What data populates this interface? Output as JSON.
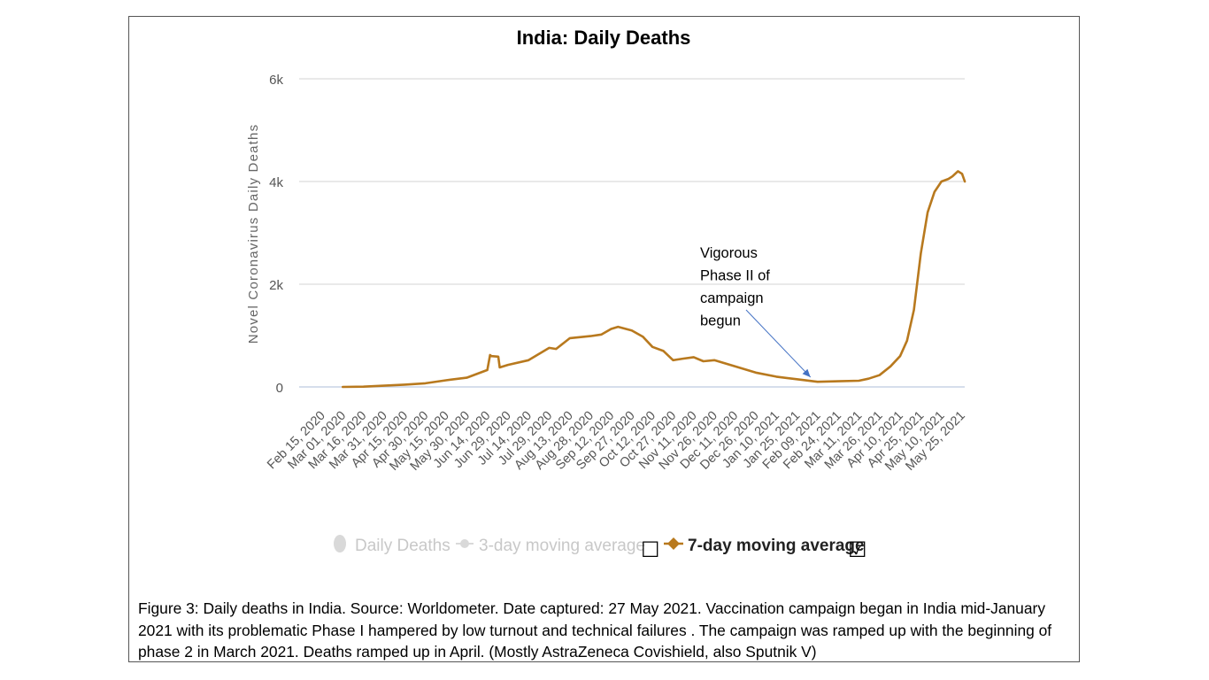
{
  "chart_data": {
    "type": "line",
    "title": "India: Daily Deaths",
    "ylabel": "Novel Coronavirus Daily Deaths",
    "xlabel": "",
    "ylim": [
      0,
      6000
    ],
    "yticks": [
      {
        "value": 0,
        "label": "0"
      },
      {
        "value": 2000,
        "label": "2k"
      },
      {
        "value": 4000,
        "label": "4k"
      },
      {
        "value": 6000,
        "label": "6k"
      }
    ],
    "x_tick_labels": [
      "Feb 15, 2020",
      "Mar 01, 2020",
      "Mar 16, 2020",
      "Mar 31, 2020",
      "Apr 15, 2020",
      "Apr 30, 2020",
      "May 15, 2020",
      "May 30, 2020",
      "Jun 14, 2020",
      "Jun 29, 2020",
      "Jul 14, 2020",
      "Jul 29, 2020",
      "Aug 13, 2020",
      "Aug 28, 2020",
      "Sep 12, 2020",
      "Sep 27, 2020",
      "Oct 12, 2020",
      "Oct 27, 2020",
      "Nov 11, 2020",
      "Nov 26, 2020",
      "Dec 11, 2020",
      "Dec 26, 2020",
      "Jan 10, 2021",
      "Jan 25, 2021",
      "Feb 09, 2021",
      "Feb 24, 2021",
      "Mar 11, 2021",
      "Mar 26, 2021",
      "Apr 10, 2021",
      "Apr 25, 2021",
      "May 10, 2021",
      "May 25, 2021"
    ],
    "grid": true,
    "legend_position": "bottom",
    "legend": [
      {
        "label": "Daily Deaths",
        "active": false,
        "checkbox": ""
      },
      {
        "label": "3-day moving average",
        "active": false,
        "checkbox": "☐"
      },
      {
        "label": "7-day moving average",
        "active": true,
        "checkbox": "☑"
      }
    ],
    "series": [
      {
        "name": "7-day moving average",
        "color": "#b8791e",
        "x": [
          "Mar 01, 2020",
          "Mar 16, 2020",
          "Mar 31, 2020",
          "Apr 15, 2020",
          "Apr 30, 2020",
          "May 15, 2020",
          "May 30, 2020",
          "Jun 14, 2020",
          "Jun 16, 2020",
          "Jun 17, 2020",
          "Jun 22, 2020",
          "Jun 23, 2020",
          "Jun 29, 2020",
          "Jul 14, 2020",
          "Jul 29, 2020",
          "Aug 03, 2020",
          "Aug 13, 2020",
          "Aug 28, 2020",
          "Sep 05, 2020",
          "Sep 12, 2020",
          "Sep 17, 2020",
          "Sep 27, 2020",
          "Oct 05, 2020",
          "Oct 12, 2020",
          "Oct 20, 2020",
          "Oct 27, 2020",
          "Nov 03, 2020",
          "Nov 11, 2020",
          "Nov 18, 2020",
          "Nov 26, 2020",
          "Dec 11, 2020",
          "Dec 26, 2020",
          "Jan 10, 2021",
          "Jan 25, 2021",
          "Feb 09, 2021",
          "Feb 24, 2021",
          "Mar 11, 2021",
          "Mar 18, 2021",
          "Mar 26, 2021",
          "Apr 03, 2021",
          "Apr 10, 2021",
          "Apr 15, 2021",
          "Apr 20, 2021",
          "Apr 25, 2021",
          "Apr 30, 2021",
          "May 05, 2021",
          "May 10, 2021",
          "May 15, 2021",
          "May 18, 2021",
          "May 20, 2021",
          "May 22, 2021",
          "May 25, 2021",
          "May 27, 2021"
        ],
        "values": [
          0,
          5,
          25,
          45,
          70,
          130,
          180,
          330,
          620,
          600,
          590,
          380,
          430,
          520,
          760,
          740,
          950,
          990,
          1020,
          1130,
          1170,
          1100,
          980,
          780,
          700,
          520,
          550,
          580,
          500,
          520,
          400,
          280,
          200,
          150,
          100,
          110,
          120,
          160,
          230,
          400,
          600,
          900,
          1500,
          2600,
          3400,
          3800,
          4000,
          4050,
          4100,
          4150,
          4200,
          4150,
          4000
        ]
      }
    ]
  },
  "annotation": {
    "lines": [
      "Vigorous",
      "Phase II of",
      "campaign",
      "begun"
    ],
    "arrow_target": "Feb 09, 2021"
  },
  "caption": "Figure 3: Daily deaths in India.  Source: Worldometer.  Date captured: 27 May 2021.  Vaccination campaign began in India mid-January 2021 with its problematic Phase I hampered by low turnout and technical failures .  The campaign was ramped up with the beginning of phase 2 in March 2021.  Deaths ramped up in April.  (Mostly AstraZeneca Covishield, also Sputnik V)"
}
